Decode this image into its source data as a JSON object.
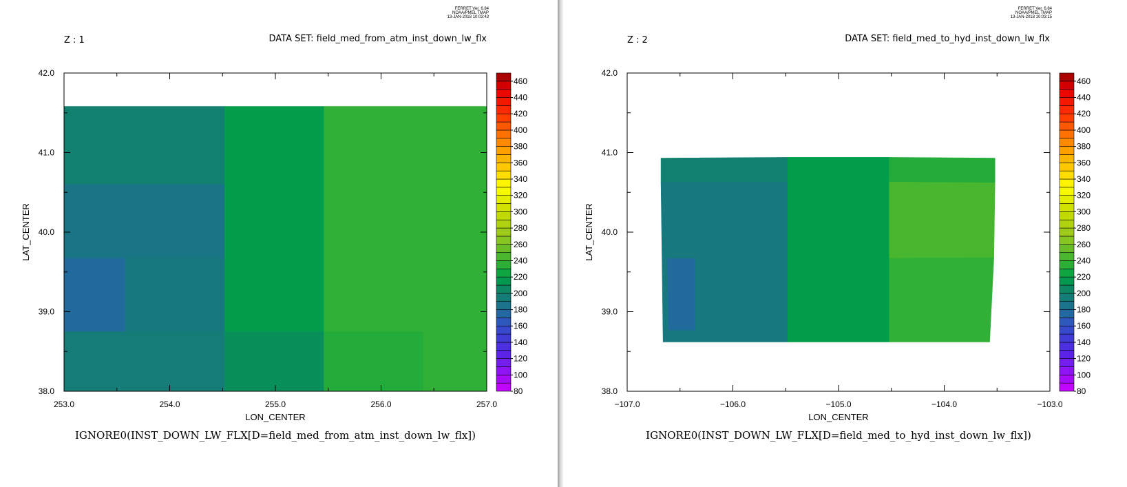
{
  "chart_data": [
    {
      "type": "heatmap",
      "stamp": [
        "FERRET Ver. 6.84",
        "NOAA/PMEL TMAP",
        "13-JAN-2018 10:03:43"
      ],
      "z_label": "Z : 1",
      "dataset_label": "DATA SET: field_med_from_atm_inst_down_lw_flx",
      "xlabel": "LON_CENTER",
      "ylabel": "LAT_CENTER",
      "caption": "IGNORE0(INST_DOWN_LW_FLX[D=field_med_from_atm_inst_down_lw_flx])",
      "xlim": [
        253.0,
        257.0
      ],
      "ylim": [
        38.0,
        42.0
      ],
      "xticks": [
        "253.0",
        "254.0",
        "255.0",
        "256.0",
        "257.0"
      ],
      "yticks": [
        "38.0",
        "39.0",
        "40.0",
        "41.0",
        "42.0"
      ],
      "colorbar": {
        "min": 80,
        "max": 470,
        "step": 10,
        "labels": [
          "80",
          "100",
          "120",
          "140",
          "160",
          "180",
          "200",
          "220",
          "240",
          "260",
          "280",
          "300",
          "320",
          "340",
          "360",
          "380",
          "400",
          "420",
          "440",
          "460"
        ]
      },
      "cells": [
        {
          "corners": [
            [
              253.0,
              40.6
            ],
            [
              254.52,
              40.6
            ],
            [
              254.52,
              41.58
            ],
            [
              253.0,
              41.58
            ]
          ],
          "value": 200
        },
        {
          "corners": [
            [
              253.0,
              39.67
            ],
            [
              254.52,
              39.67
            ],
            [
              254.52,
              40.6
            ],
            [
              253.0,
              40.6
            ]
          ],
          "value": 188
        },
        {
          "corners": [
            [
              253.0,
              38.75
            ],
            [
              253.58,
              38.75
            ],
            [
              253.58,
              39.67
            ],
            [
              253.0,
              39.67
            ]
          ],
          "value": 178
        },
        {
          "corners": [
            [
              253.58,
              38.75
            ],
            [
              254.52,
              38.75
            ],
            [
              254.52,
              39.67
            ],
            [
              253.58,
              39.67
            ]
          ],
          "value": 192
        },
        {
          "corners": [
            [
              253.0,
              38.0
            ],
            [
              254.52,
              38.0
            ],
            [
              254.52,
              38.75
            ],
            [
              253.0,
              38.75
            ]
          ],
          "value": 195
        },
        {
          "corners": [
            [
              254.52,
              38.75
            ],
            [
              255.46,
              38.75
            ],
            [
              255.46,
              41.58
            ],
            [
              254.52,
              41.58
            ]
          ],
          "value": 218
        },
        {
          "corners": [
            [
              254.52,
              38.0
            ],
            [
              255.46,
              38.0
            ],
            [
              255.46,
              38.75
            ],
            [
              254.52,
              38.75
            ]
          ],
          "value": 210
        },
        {
          "corners": [
            [
              255.46,
              38.75
            ],
            [
              257.0,
              38.75
            ],
            [
              257.0,
              41.58
            ],
            [
              255.46,
              41.58
            ]
          ],
          "value": 236
        },
        {
          "corners": [
            [
              255.46,
              38.0
            ],
            [
              256.4,
              38.0
            ],
            [
              256.4,
              38.75
            ],
            [
              255.46,
              38.75
            ]
          ],
          "value": 232
        },
        {
          "corners": [
            [
              256.4,
              38.0
            ],
            [
              257.0,
              38.0
            ],
            [
              257.0,
              38.75
            ],
            [
              256.4,
              38.75
            ]
          ],
          "value": 236
        }
      ]
    },
    {
      "type": "heatmap",
      "stamp": [
        "FERRET Ver. 6.84",
        "NOAA/PMEL TMAP",
        "13-JAN-2018 10:03:15"
      ],
      "z_label": "Z : 2",
      "dataset_label": "DATA SET: field_med_to_hyd_inst_down_lw_flx",
      "xlabel": "LON_CENTER",
      "ylabel": "LAT_CENTER",
      "caption": "IGNORE0(INST_DOWN_LW_FLX[D=field_med_to_hyd_inst_down_lw_flx])",
      "xlim": [
        -107.0,
        -103.0
      ],
      "ylim": [
        38.0,
        42.0
      ],
      "xticks": [
        "−107.0",
        "−106.0",
        "−105.0",
        "−104.0",
        "−103.0"
      ],
      "yticks": [
        "38.0",
        "39.0",
        "40.0",
        "41.0",
        "42.0"
      ],
      "colorbar": {
        "min": 80,
        "max": 470,
        "step": 10,
        "labels": [
          "80",
          "100",
          "120",
          "140",
          "160",
          "180",
          "200",
          "220",
          "240",
          "260",
          "280",
          "300",
          "320",
          "340",
          "360",
          "380",
          "400",
          "420",
          "440",
          "460"
        ]
      },
      "cells": [
        {
          "corners": [
            [
              -106.68,
              40.63
            ],
            [
              -105.48,
              40.63
            ],
            [
              -105.48,
              40.94
            ],
            [
              -106.68,
              40.93
            ]
          ],
          "value": 200
        },
        {
          "corners": [
            [
              -106.66,
              38.62
            ],
            [
              -105.48,
              38.62
            ],
            [
              -105.48,
              40.63
            ],
            [
              -106.68,
              40.63
            ]
          ],
          "value": 192
        },
        {
          "corners": [
            [
              -106.61,
              38.77
            ],
            [
              -106.36,
              38.77
            ],
            [
              -106.36,
              39.67
            ],
            [
              -106.62,
              39.67
            ]
          ],
          "value": 178
        },
        {
          "corners": [
            [
              -105.48,
              38.62
            ],
            [
              -104.52,
              38.62
            ],
            [
              -104.52,
              40.94
            ],
            [
              -105.48,
              40.94
            ]
          ],
          "value": 218
        },
        {
          "corners": [
            [
              -104.52,
              40.63
            ],
            [
              -103.52,
              40.62
            ],
            [
              -103.52,
              40.93
            ],
            [
              -104.52,
              40.94
            ]
          ],
          "value": 232
        },
        {
          "corners": [
            [
              -104.52,
              39.67
            ],
            [
              -103.53,
              39.68
            ],
            [
              -103.52,
              40.62
            ],
            [
              -104.52,
              40.63
            ]
          ],
          "value": 244
        },
        {
          "corners": [
            [
              -104.52,
              38.62
            ],
            [
              -103.57,
              38.62
            ],
            [
              -103.53,
              39.68
            ],
            [
              -104.52,
              39.67
            ]
          ],
          "value": 236
        }
      ]
    }
  ]
}
